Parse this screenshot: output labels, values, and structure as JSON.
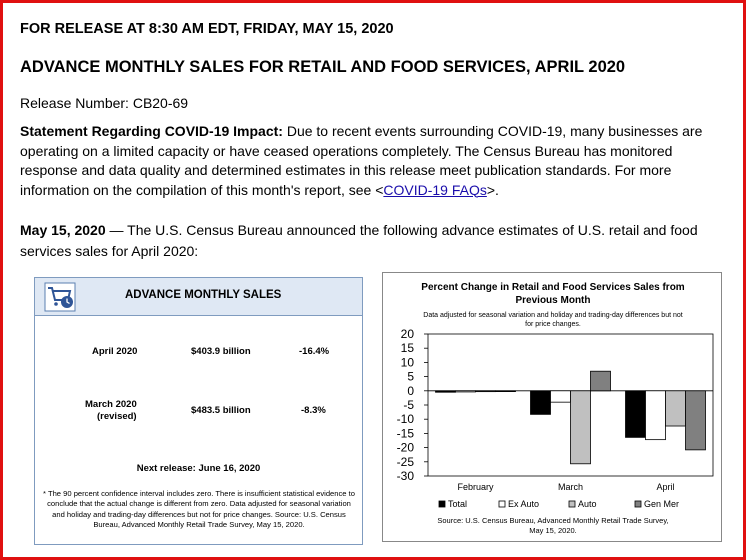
{
  "header": {
    "release_date": "FOR RELEASE AT 8:30 AM EDT, FRIDAY, MAY 15, 2020",
    "headline": "ADVANCE MONTHLY SALES FOR RETAIL AND FOOD SERVICES, APRIL 2020",
    "release_number": "Release Number: CB20-69"
  },
  "statement": {
    "label": "Statement Regarding COVID-19 Impact:",
    "text_before_link": " Due to recent events surrounding COVID-19, many businesses are operating on a limited capacity or have ceased operations completely. The Census Bureau has monitored response and data quality and determined estimates in this release meet publication standards. For more information on the compilation of this month's report, see <",
    "link_text": "COVID-19 FAQs",
    "text_after_link": ">."
  },
  "intro": {
    "date": "May 15, 2020",
    "text": " — The U.S. Census Bureau announced the following advance estimates of U.S. retail and food services sales for April 2020:"
  },
  "sales_box": {
    "title": "ADVANCE MONTHLY SALES",
    "icon": "shopping-cart-clock-icon",
    "rows": [
      {
        "period": "April 2020",
        "period_note": "",
        "value": "$403.9 billion",
        "change": "-16.4%"
      },
      {
        "period": "March 2020",
        "period_note": "(revised)",
        "value": "$483.5 billion",
        "change": "-8.3%"
      }
    ],
    "next_release": "Next release: June 16, 2020",
    "footnote": "* The 90 percent confidence interval includes zero. There is insufficient statistical evidence to conclude that the actual change is different from zero. Data adjusted for seasonal variation and holiday and trading-day differences but not for price changes. Source: U.S. Census Bureau, Advanced Monthly Retail Trade Survey, May 15, 2020."
  },
  "chart_data": {
    "type": "bar",
    "title": "Percent Change in Retail and Food Services Sales from Previous Month",
    "subtitle": "Data adjusted for seasonal variation and holiday and trading-day differences but not for price changes.",
    "categories": [
      "February",
      "March",
      "April"
    ],
    "series": [
      {
        "name": "Total",
        "color": "#000000",
        "values": [
          -0.5,
          -8.3,
          -16.4
        ]
      },
      {
        "name": "Ex Auto",
        "color": "#ffffff",
        "values": [
          -0.4,
          -4.0,
          -17.2
        ]
      },
      {
        "name": "Auto",
        "color": "#c0c0c0",
        "values": [
          -0.3,
          -25.7,
          -12.4
        ]
      },
      {
        "name": "Gen Mer",
        "color": "#808080",
        "values": [
          -0.1,
          6.9,
          -20.8
        ]
      }
    ],
    "ylim": [
      -30,
      20
    ],
    "yticks": [
      20,
      15,
      10,
      5,
      0,
      -5,
      -10,
      -15,
      -20,
      -25,
      -30
    ],
    "legend_position": "bottom",
    "grid": false,
    "source": "Source: U.S. Census Bureau, Advanced Monthly Retail Trade Survey, May 15, 2020."
  }
}
